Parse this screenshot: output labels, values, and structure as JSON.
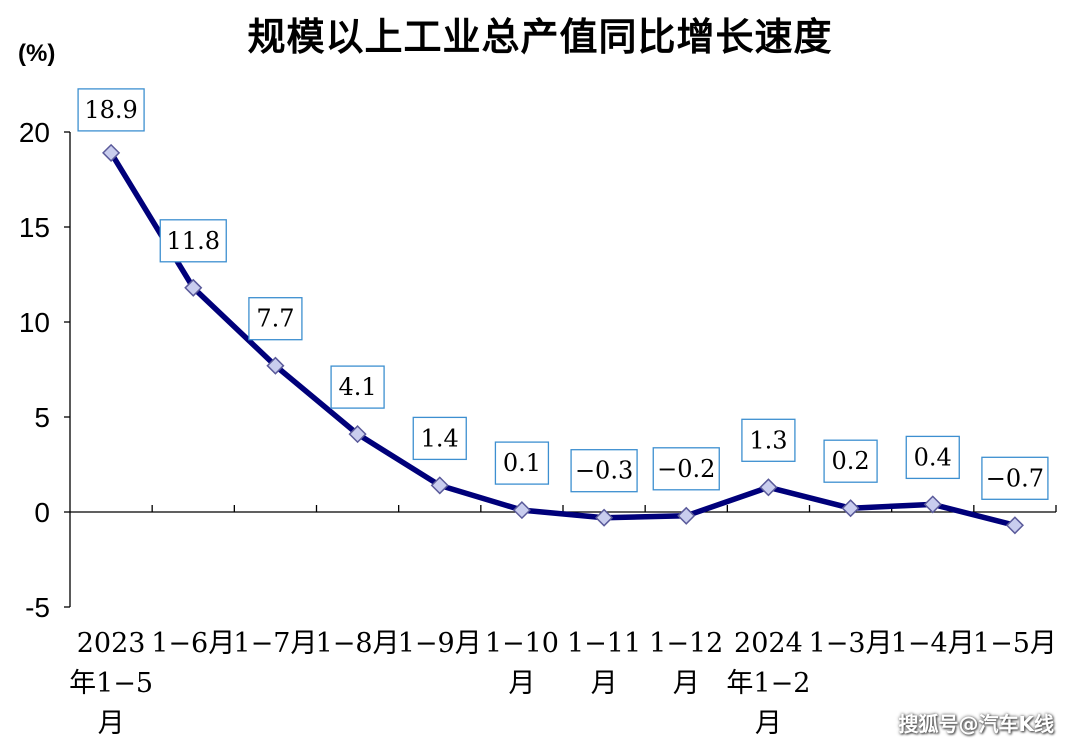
{
  "chart_data": {
    "type": "line",
    "title": "规模以上工业总产值同比增长速度",
    "ylabel": "(%)",
    "ylim": [
      -5,
      20
    ],
    "yticks": [
      "20",
      "15",
      "10",
      "5",
      "0",
      "-5"
    ],
    "categories": [
      [
        "2023",
        "年1−5",
        "月"
      ],
      [
        "1−6月"
      ],
      [
        "1−7月"
      ],
      [
        "1−8月"
      ],
      [
        "1−9月"
      ],
      [
        "1−10",
        "月"
      ],
      [
        "1−11",
        "月"
      ],
      [
        "1−12",
        "月"
      ],
      [
        "2024",
        "年1−2",
        "月"
      ],
      [
        "1−3月"
      ],
      [
        "1−4月"
      ],
      [
        "1−5月"
      ]
    ],
    "values": [
      18.9,
      11.8,
      7.7,
      4.1,
      1.4,
      0.1,
      -0.3,
      -0.2,
      1.3,
      0.2,
      0.4,
      -0.7
    ],
    "data_labels": [
      "18.9",
      "11.8",
      "7.7",
      "4.1",
      "1.4",
      "0.1",
      "−0.3",
      "−0.2",
      "1.3",
      "0.2",
      "0.4",
      "−0.7"
    ],
    "colors": {
      "line": "#00007a",
      "marker_fill": "#c9cdee",
      "marker_stroke": "#5a5a9a",
      "label_border": "#3d8fd0"
    }
  },
  "watermark": "搜狐号@汽车K线"
}
